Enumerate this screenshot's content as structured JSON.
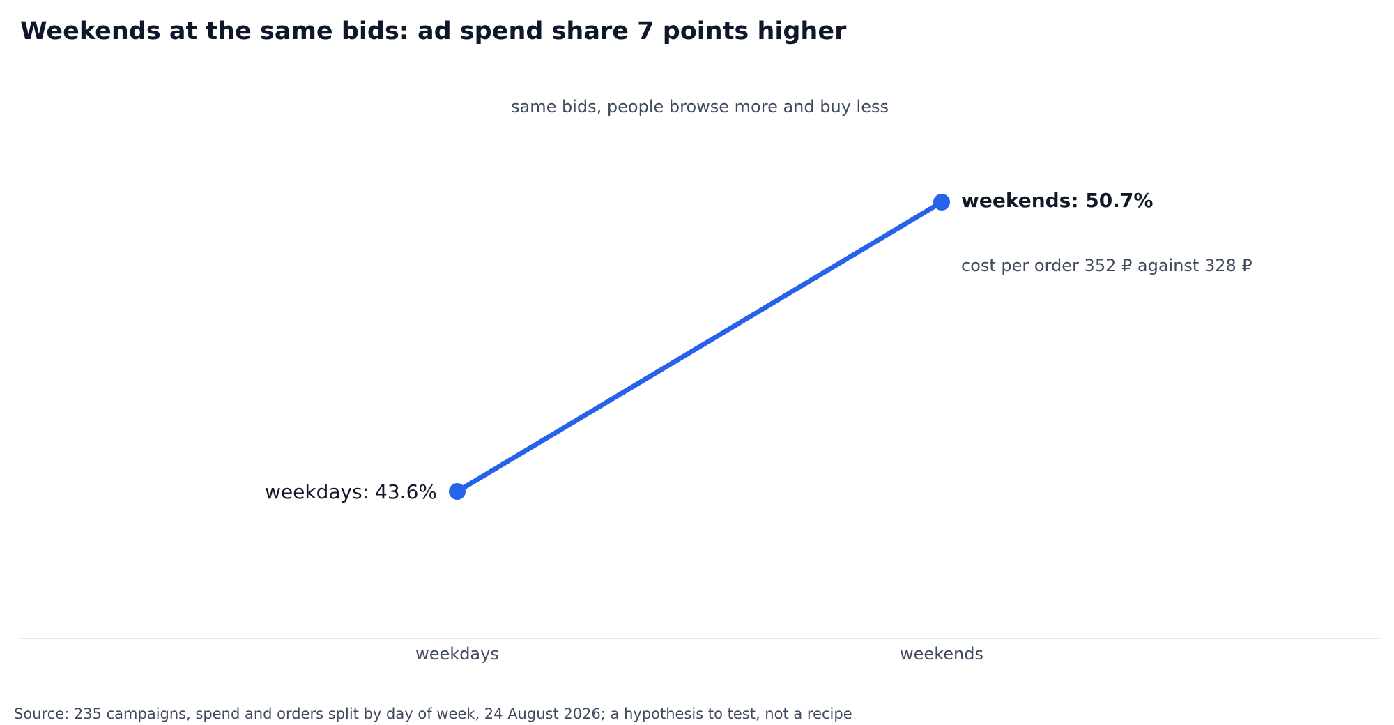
{
  "chart_data": {
    "type": "line",
    "title": "Weekends at the same bids: ad spend share 7 points higher",
    "subtitle": "same bids, people browse more and buy less",
    "categories": [
      "weekdays",
      "weekends"
    ],
    "series": [
      {
        "values": [
          43.6,
          50.7
        ]
      }
    ],
    "point_labels": [
      "weekdays: 43.6%",
      "weekends: 50.7%"
    ],
    "annotation": "cost per order 352 ₽ against 328 ₽",
    "source": "Source: 235 campaigns, spend and orders split by day of week, 24 August 2026; a hypothesis to test, not a recipe",
    "ylim": [
      35,
      55
    ],
    "grid": false,
    "colors": {
      "line": "#2563eb",
      "axis": "#e5e7eb"
    }
  }
}
